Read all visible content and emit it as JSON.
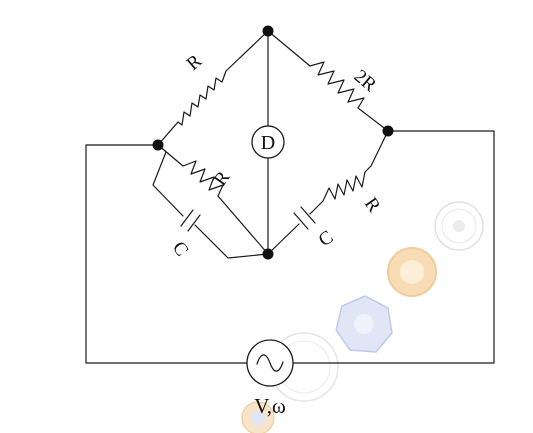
{
  "circuit": {
    "labels": {
      "r_top_left": "R",
      "r_top_right": "2R",
      "r_lower_left": "R",
      "r_lower_right": "R",
      "c_lower_left": "C",
      "c_lower_right": "C",
      "detector": "D",
      "source": "V,ω"
    }
  },
  "watermark": {
    "seals": [
      "institute-seal",
      "institute-seal",
      "institute-seal",
      "institute-seal",
      "institute-seal"
    ],
    "colors": {
      "orange": "#e8a44a",
      "blue": "#8aa0d8",
      "gray": "#b5b5b5"
    }
  },
  "colors": {
    "ink": "#1a1a1a",
    "node": "#111111",
    "background": "#ffffff"
  }
}
